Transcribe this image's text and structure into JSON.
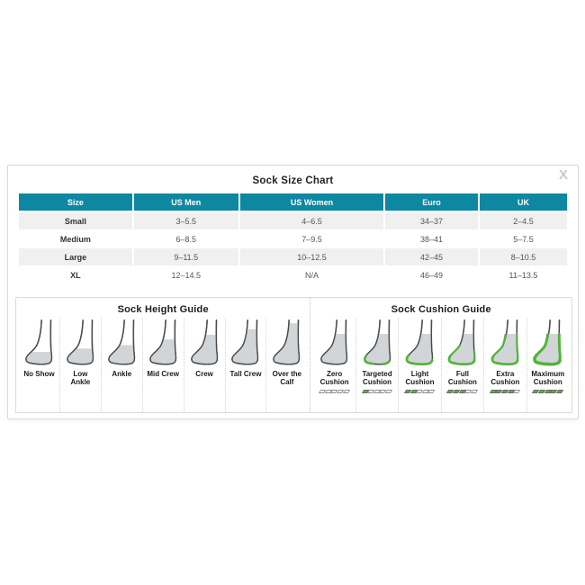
{
  "modal": {
    "title": "Sock Size Chart",
    "close_label": "X"
  },
  "colors": {
    "header_teal": "#0e87a1",
    "cushion_green": "#54b33b",
    "sock_gray": "#d2d5d7",
    "sock_outline": "#4b4b4b",
    "row_stripe": "#f0f0f0"
  },
  "size_table": {
    "headers": [
      "Size",
      "US Men",
      "US Women",
      "Euro",
      "UK"
    ],
    "rows": [
      {
        "size": "Small",
        "us_men": "3–5.5",
        "us_women": "4–6.5",
        "euro": "34–37",
        "uk": "2–4.5"
      },
      {
        "size": "Medium",
        "us_men": "6–8.5",
        "us_women": "7–9.5",
        "euro": "38–41",
        "uk": "5–7.5"
      },
      {
        "size": "Large",
        "us_men": "9–11.5",
        "us_women": "10–12.5",
        "euro": "42–45",
        "uk": "8–10.5"
      },
      {
        "size": "XL",
        "us_men": "12–14.5",
        "us_women": "N/A",
        "euro": "46–49",
        "uk": "11–13.5"
      }
    ]
  },
  "height_guide": {
    "title": "Sock Height Guide",
    "items": [
      {
        "label": "No Show",
        "coverage": 0.3
      },
      {
        "label": "Low Ankle",
        "coverage": 0.38
      },
      {
        "label": "Ankle",
        "coverage": 0.46
      },
      {
        "label": "Mid Crew",
        "coverage": 0.59
      },
      {
        "label": "Crew",
        "coverage": 0.7
      },
      {
        "label": "Tall Crew",
        "coverage": 0.83
      },
      {
        "label": "Over the Calf",
        "coverage": 0.97
      }
    ]
  },
  "cushion_guide": {
    "title": "Sock Cushion Guide",
    "gauge_total": 5,
    "items": [
      {
        "label": "Zero Cushion",
        "coverage": 0.72,
        "cushion_zone": "none",
        "gauge_filled": 0
      },
      {
        "label": "Targeted Cushion",
        "coverage": 0.72,
        "cushion_zone": "heel-toe",
        "gauge_filled": 1
      },
      {
        "label": "Light Cushion",
        "coverage": 0.72,
        "cushion_zone": "sole",
        "gauge_filled": 2
      },
      {
        "label": "Full Cushion",
        "coverage": 0.72,
        "cushion_zone": "sole-wrap",
        "gauge_filled": 3
      },
      {
        "label": "Extra Cushion",
        "coverage": 0.72,
        "cushion_zone": "full-wrap",
        "gauge_filled": 4
      },
      {
        "label": "Maximum Cushion",
        "coverage": 0.72,
        "cushion_zone": "full-wrap-thick",
        "gauge_filled": 5
      }
    ]
  }
}
